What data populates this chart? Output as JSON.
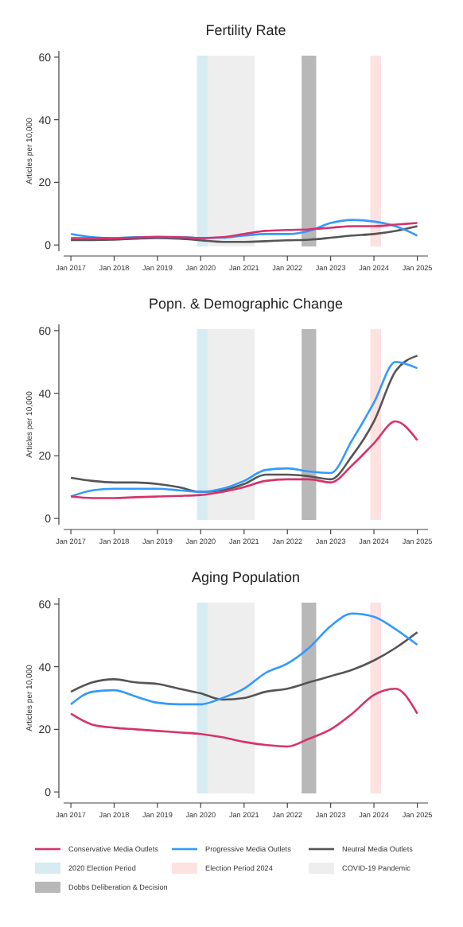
{
  "chart_data": [
    {
      "type": "line",
      "title": "Fertility Rate",
      "ylabel": "Articles per 10,000",
      "x": [
        "2017-01",
        "2017-07",
        "2018-01",
        "2018-07",
        "2019-01",
        "2019-07",
        "2020-01",
        "2020-07",
        "2021-01",
        "2021-07",
        "2022-01",
        "2022-07",
        "2023-01",
        "2023-07",
        "2024-01",
        "2024-07",
        "2025-01"
      ],
      "xlim": [
        "2016-11",
        "2025-04"
      ],
      "xticks": [
        {
          "value": "2017-01",
          "label": "Jan 2017"
        },
        {
          "value": "2018-01",
          "label": "Jan 2018"
        },
        {
          "value": "2019-01",
          "label": "Jan 2019"
        },
        {
          "value": "2020-01",
          "label": "Jan 2020"
        },
        {
          "value": "2021-01",
          "label": "Jan 2021"
        },
        {
          "value": "2022-01",
          "label": "Jan 2022"
        },
        {
          "value": "2023-01",
          "label": "Jan 2023"
        },
        {
          "value": "2024-01",
          "label": "Jan 2024"
        },
        {
          "value": "2025-01",
          "label": "Jan 2025"
        }
      ],
      "ylim": [
        -2,
        62
      ],
      "yticks": [
        0,
        20,
        40,
        60
      ],
      "grid": false,
      "legend": false,
      "series": [
        {
          "color": "#d6336c",
          "values": [
            2.2,
            2.2,
            2.1,
            2.4,
            2.6,
            2.5,
            2.2,
            2.5,
            3.5,
            4.5,
            4.8,
            5,
            5.5,
            6,
            6,
            6.5,
            7
          ]
        },
        {
          "color": "#3399ff",
          "values": [
            3.5,
            2.5,
            2.2,
            2.5,
            2.5,
            2.5,
            2.2,
            2.3,
            3,
            3.5,
            3.5,
            4.5,
            7,
            8,
            7.5,
            6,
            3
          ]
        },
        {
          "color": "#555555",
          "values": [
            1.6,
            1.6,
            1.7,
            2,
            2.2,
            2,
            1.5,
            1,
            1,
            1.2,
            1.5,
            1.7,
            2.3,
            3,
            3.5,
            4.5,
            6
          ]
        }
      ],
      "bands": [
        {
          "axis": "x",
          "from": "2019-12",
          "to": "2020-03",
          "color": "#d6ebf2"
        },
        {
          "axis": "x",
          "from": "2023-12",
          "to": "2024-03",
          "color": "#fde2e2"
        },
        {
          "axis": "x",
          "from": "2020-03",
          "to": "2021-04",
          "color": "#eeeeee"
        },
        {
          "axis": "x",
          "from": "2022-05",
          "to": "2022-09",
          "color": "#b8b8b8"
        }
      ]
    },
    {
      "type": "line",
      "title": "Popn. & Demographic Change",
      "ylabel": "Articles per 10,000",
      "x": [
        "2017-01",
        "2017-07",
        "2018-01",
        "2018-07",
        "2019-01",
        "2019-07",
        "2020-01",
        "2020-07",
        "2021-01",
        "2021-07",
        "2022-01",
        "2022-07",
        "2023-01",
        "2023-07",
        "2024-01",
        "2024-07",
        "2025-01"
      ],
      "xlim": [
        "2016-11",
        "2025-04"
      ],
      "xticks": [
        {
          "value": "2017-01",
          "label": "Jan 2017"
        },
        {
          "value": "2018-01",
          "label": "Jan 2018"
        },
        {
          "value": "2019-01",
          "label": "Jan 2019"
        },
        {
          "value": "2020-01",
          "label": "Jan 2020"
        },
        {
          "value": "2021-01",
          "label": "Jan 2021"
        },
        {
          "value": "2022-01",
          "label": "Jan 2022"
        },
        {
          "value": "2023-01",
          "label": "Jan 2023"
        },
        {
          "value": "2024-01",
          "label": "Jan 2024"
        },
        {
          "value": "2025-01",
          "label": "Jan 2025"
        }
      ],
      "ylim": [
        -2,
        62
      ],
      "yticks": [
        0,
        20,
        40,
        60
      ],
      "grid": false,
      "legend": false,
      "series": [
        {
          "color": "#d6336c",
          "values": [
            7,
            6.5,
            6.5,
            6.8,
            7,
            7.2,
            7.5,
            8.5,
            10,
            12,
            12.5,
            12.5,
            11.5,
            17,
            24,
            31,
            25
          ]
        },
        {
          "color": "#3399ff",
          "values": [
            7,
            9,
            9.5,
            9.5,
            9.5,
            9,
            8.5,
            9.5,
            12,
            15.5,
            16,
            15,
            14.5,
            25,
            37,
            50,
            48
          ]
        },
        {
          "color": "#555555",
          "values": [
            13,
            12,
            11.5,
            11.5,
            11,
            10,
            8.5,
            9,
            11,
            14,
            14,
            13.5,
            12.5,
            20,
            31,
            47,
            52
          ]
        }
      ],
      "bands": [
        {
          "axis": "x",
          "from": "2019-12",
          "to": "2020-03",
          "color": "#d6ebf2"
        },
        {
          "axis": "x",
          "from": "2023-12",
          "to": "2024-03",
          "color": "#fde2e2"
        },
        {
          "axis": "x",
          "from": "2020-03",
          "to": "2021-04",
          "color": "#eeeeee"
        },
        {
          "axis": "x",
          "from": "2022-05",
          "to": "2022-09",
          "color": "#b8b8b8"
        }
      ]
    },
    {
      "type": "line",
      "title": "Aging Population",
      "ylabel": "Articles per 10,000",
      "x": [
        "2017-01",
        "2017-07",
        "2018-01",
        "2018-07",
        "2019-01",
        "2019-07",
        "2020-01",
        "2020-07",
        "2021-01",
        "2021-07",
        "2022-01",
        "2022-07",
        "2023-01",
        "2023-07",
        "2024-01",
        "2024-07",
        "2025-01"
      ],
      "xlim": [
        "2016-11",
        "2025-04"
      ],
      "xticks": [
        {
          "value": "2017-01",
          "label": "Jan 2017"
        },
        {
          "value": "2018-01",
          "label": "Jan 2018"
        },
        {
          "value": "2019-01",
          "label": "Jan 2019"
        },
        {
          "value": "2020-01",
          "label": "Jan 2020"
        },
        {
          "value": "2021-01",
          "label": "Jan 2021"
        },
        {
          "value": "2022-01",
          "label": "Jan 2022"
        },
        {
          "value": "2023-01",
          "label": "Jan 2023"
        },
        {
          "value": "2024-01",
          "label": "Jan 2024"
        },
        {
          "value": "2025-01",
          "label": "Jan 2025"
        }
      ],
      "ylim": [
        -2,
        62
      ],
      "yticks": [
        0,
        20,
        40,
        60
      ],
      "grid": false,
      "legend": "bottom",
      "series": [
        {
          "name": "Conservative Media Outlets",
          "color": "#d6336c",
          "values": [
            25,
            21.5,
            20.5,
            20,
            19.5,
            19,
            18.5,
            17.5,
            16,
            15,
            14.5,
            17,
            20,
            25,
            31,
            33,
            25
          ]
        },
        {
          "name": "Progressive Media Outlets",
          "color": "#3399ff",
          "values": [
            28,
            32,
            32.5,
            30.5,
            28.5,
            28,
            28,
            30,
            33,
            38,
            41,
            46,
            53,
            57,
            56,
            52,
            47
          ]
        },
        {
          "name": "Neutral Media Outlets",
          "color": "#555555",
          "values": [
            32,
            35,
            36,
            35,
            34.5,
            33,
            31.5,
            29.5,
            30,
            32,
            33,
            35,
            37,
            39,
            42,
            46,
            51
          ]
        }
      ],
      "bands": [
        {
          "axis": "x",
          "from": "2019-12",
          "to": "2020-03",
          "label": "2020 Election Period",
          "color": "#d6ebf2"
        },
        {
          "axis": "x",
          "from": "2023-12",
          "to": "2024-03",
          "label": "Election Period 2024",
          "color": "#fde2e2"
        },
        {
          "axis": "x",
          "from": "2020-03",
          "to": "2021-04",
          "label": "COVID-19 Pandemic",
          "color": "#eeeeee"
        },
        {
          "axis": "x",
          "from": "2022-05",
          "to": "2022-09",
          "label": "Dobbs Deliberation & Decision",
          "color": "#b8b8b8"
        }
      ]
    }
  ]
}
